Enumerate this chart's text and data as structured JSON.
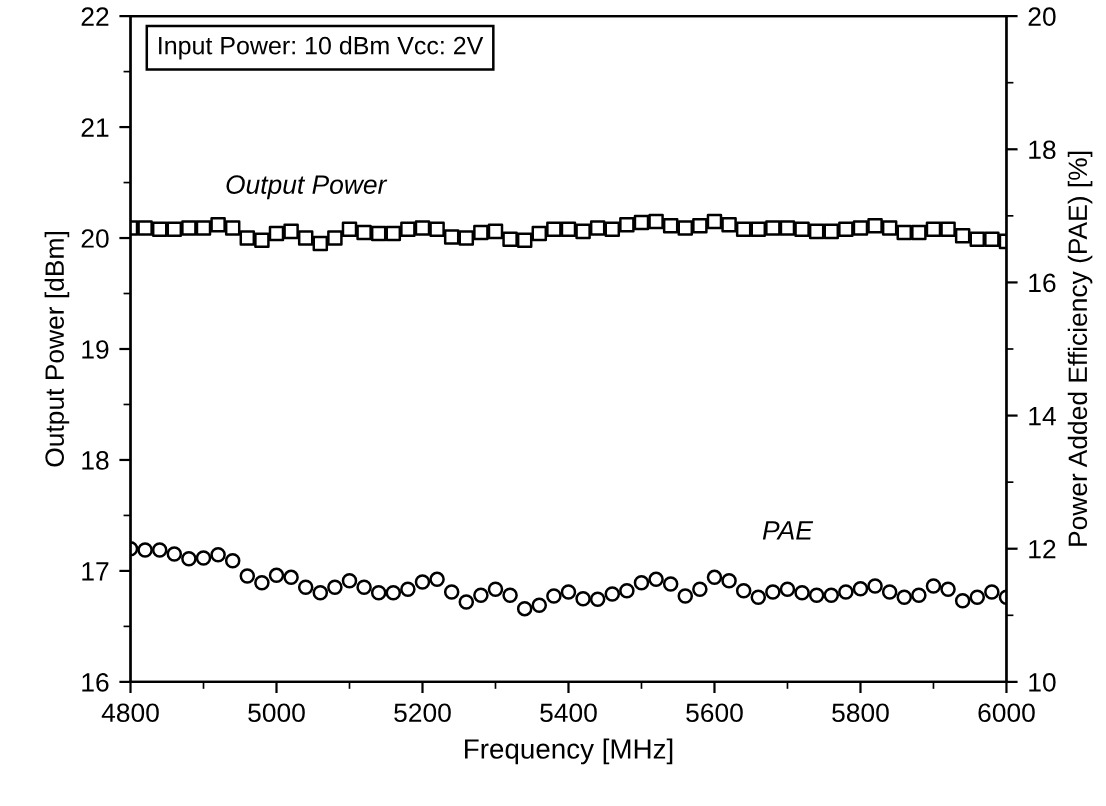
{
  "chart_data": {
    "type": "scatter",
    "xlabel": "Frequency [MHz]",
    "ylabel": "Output Power [dBm]",
    "y2label": "Power Added Efficiency (PAE) [%]",
    "annotations": [
      "Input Power: 10 dBm Vcc: 2V"
    ],
    "x": [
      4800,
      4820,
      4840,
      4860,
      4880,
      4900,
      4920,
      4940,
      4960,
      4980,
      5000,
      5020,
      5040,
      5060,
      5080,
      5100,
      5120,
      5140,
      5160,
      5180,
      5200,
      5220,
      5240,
      5260,
      5280,
      5300,
      5320,
      5340,
      5360,
      5380,
      5400,
      5420,
      5440,
      5460,
      5480,
      5500,
      5520,
      5540,
      5560,
      5580,
      5600,
      5620,
      5640,
      5660,
      5680,
      5700,
      5720,
      5740,
      5760,
      5780,
      5800,
      5820,
      5840,
      5860,
      5880,
      5900,
      5920,
      5940,
      5960,
      5980,
      6000
    ],
    "series": [
      {
        "name": "Output Power",
        "color": "#000000",
        "marker": "square",
        "values": [
          20.09,
          20.09,
          20.08,
          20.08,
          20.09,
          20.09,
          20.12,
          20.09,
          20.0,
          19.98,
          20.04,
          20.06,
          20.0,
          19.95,
          20.0,
          20.08,
          20.05,
          20.04,
          20.04,
          20.08,
          20.09,
          20.08,
          20.01,
          20.0,
          20.05,
          20.06,
          19.99,
          19.98,
          20.04,
          20.08,
          20.08,
          20.06,
          20.09,
          20.08,
          20.12,
          20.14,
          20.15,
          20.11,
          20.09,
          20.11,
          20.15,
          20.12,
          20.08,
          20.08,
          20.09,
          20.09,
          20.08,
          20.06,
          20.06,
          20.08,
          20.09,
          20.11,
          20.09,
          20.05,
          20.05,
          20.08,
          20.08,
          20.02,
          19.99,
          19.99,
          19.97
        ]
      },
      {
        "name": "PAE",
        "color": "#000000",
        "marker": "circle",
        "axis": "y2",
        "values": [
          12.0,
          11.98,
          11.98,
          11.92,
          11.85,
          11.86,
          11.91,
          11.82,
          11.59,
          11.49,
          11.6,
          11.57,
          11.42,
          11.34,
          11.42,
          11.52,
          11.42,
          11.34,
          11.34,
          11.39,
          11.5,
          11.54,
          11.35,
          11.2,
          11.3,
          11.39,
          11.3,
          11.1,
          11.15,
          11.29,
          11.35,
          11.25,
          11.24,
          11.32,
          11.37,
          11.49,
          11.54,
          11.47,
          11.29,
          11.39,
          11.57,
          11.52,
          11.37,
          11.27,
          11.35,
          11.39,
          11.34,
          11.3,
          11.3,
          11.35,
          11.4,
          11.44,
          11.35,
          11.27,
          11.3,
          11.44,
          11.39,
          11.22,
          11.27,
          11.35,
          11.27
        ]
      }
    ],
    "xlim": [
      4800,
      6000
    ],
    "xticks": [
      4800,
      5000,
      5200,
      5400,
      5600,
      5800,
      6000
    ],
    "ylim": [
      16,
      22
    ],
    "yticks": [
      16,
      17,
      18,
      19,
      20,
      21,
      22
    ],
    "y2lim": [
      10,
      20
    ],
    "y2ticks": [
      10,
      12,
      14,
      16,
      18,
      20
    ],
    "grid": false,
    "legend": false
  }
}
